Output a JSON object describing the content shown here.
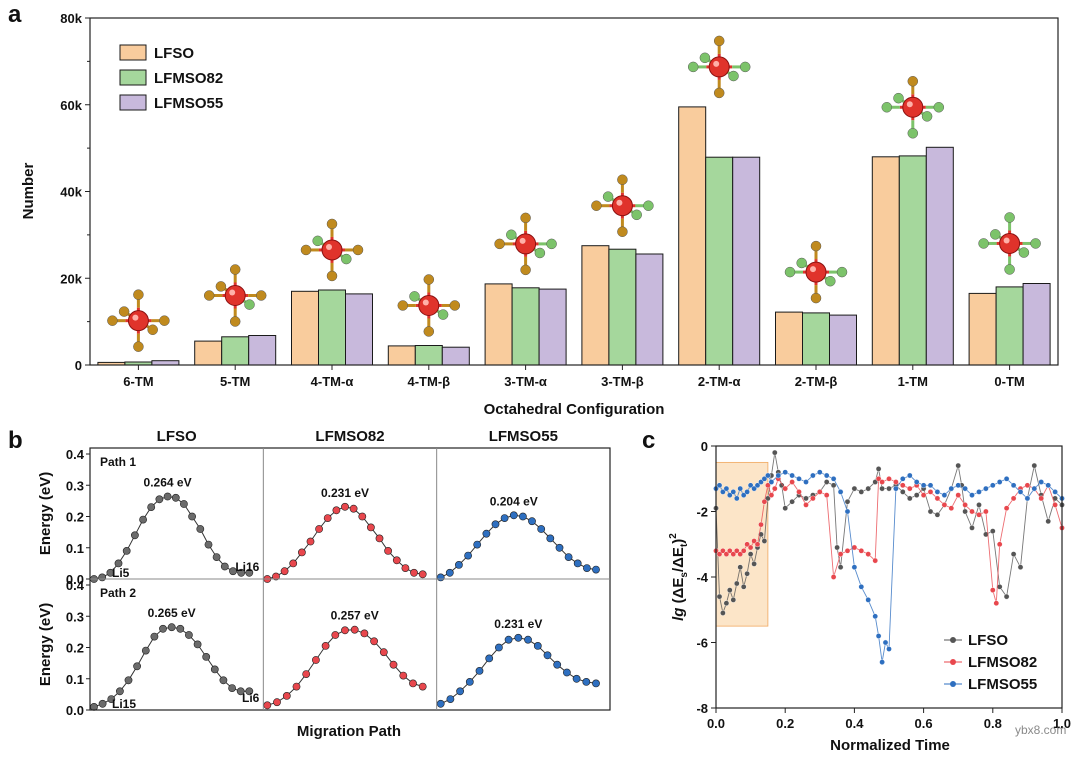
{
  "chart_data": [
    {
      "panel": "a",
      "type": "bar",
      "xlabel": "Octahedral Configuration",
      "ylabel": "Number",
      "ylim": [
        0,
        80000
      ],
      "yticks": [
        "0",
        "20k",
        "40k",
        "60k",
        "80k"
      ],
      "categories": [
        "6-TM",
        "5-TM",
        "4-TM-α",
        "4-TM-β",
        "3-TM-α",
        "3-TM-β",
        "2-TM-α",
        "2-TM-β",
        "1-TM",
        "0-TM"
      ],
      "series": [
        {
          "name": "LFSO",
          "color": "#f9cc9d",
          "values": [
            600,
            5500,
            17000,
            4400,
            18700,
            27500,
            59500,
            12200,
            48000,
            16500
          ]
        },
        {
          "name": "LFMSO82",
          "color": "#a5d79c",
          "values": [
            700,
            6500,
            17300,
            4500,
            17800,
            26700,
            47900,
            12000,
            48200,
            18000
          ]
        },
        {
          "name": "LFMSO55",
          "color": "#c8b9dc",
          "values": [
            1000,
            6800,
            16400,
            4100,
            17500,
            25600,
            47900,
            11500,
            50200,
            18800
          ]
        }
      ]
    },
    {
      "panel": "b",
      "type": "line",
      "xlabel": "Migration Path",
      "ylabel": "Energy (eV)",
      "ylim": [
        0,
        0.4
      ],
      "yticks": [
        "0.0",
        "0.1",
        "0.2",
        "0.3",
        "0.4"
      ],
      "columns": [
        "LFSO",
        "LFMSO82",
        "LFMSO55"
      ],
      "rows": [
        {
          "label": "Path 1",
          "start_label": "Li5",
          "end_label": "Li16",
          "series": [
            {
              "name": "LFSO",
              "color": "#6b6b6b",
              "barrier": "0.264 eV",
              "values": [
                0.0,
                0.005,
                0.02,
                0.05,
                0.09,
                0.14,
                0.19,
                0.23,
                0.255,
                0.264,
                0.26,
                0.24,
                0.2,
                0.16,
                0.11,
                0.07,
                0.04,
                0.025,
                0.02,
                0.02
              ]
            },
            {
              "name": "LFMSO82",
              "color": "#e8474d",
              "barrier": "0.231 eV",
              "values": [
                0.0,
                0.008,
                0.025,
                0.05,
                0.085,
                0.12,
                0.16,
                0.195,
                0.22,
                0.231,
                0.225,
                0.2,
                0.165,
                0.13,
                0.09,
                0.06,
                0.035,
                0.02,
                0.015
              ]
            },
            {
              "name": "LFMSO55",
              "color": "#2e6fc0",
              "barrier": "0.204 eV",
              "values": [
                0.005,
                0.02,
                0.045,
                0.075,
                0.11,
                0.145,
                0.175,
                0.195,
                0.204,
                0.2,
                0.185,
                0.16,
                0.13,
                0.1,
                0.07,
                0.05,
                0.035,
                0.03
              ]
            }
          ]
        },
        {
          "label": "Path 2",
          "start_label": "Li15",
          "end_label": "Li6",
          "series": [
            {
              "name": "LFSO",
              "color": "#6b6b6b",
              "barrier": "0.265 eV",
              "values": [
                0.01,
                0.02,
                0.035,
                0.06,
                0.095,
                0.14,
                0.19,
                0.235,
                0.26,
                0.265,
                0.26,
                0.24,
                0.21,
                0.17,
                0.13,
                0.095,
                0.07,
                0.06,
                0.06
              ]
            },
            {
              "name": "LFMSO82",
              "color": "#e8474d",
              "barrier": "0.257 eV",
              "values": [
                0.015,
                0.025,
                0.045,
                0.075,
                0.115,
                0.16,
                0.205,
                0.24,
                0.255,
                0.257,
                0.245,
                0.22,
                0.185,
                0.145,
                0.11,
                0.085,
                0.075
              ]
            },
            {
              "name": "LFMSO55",
              "color": "#2e6fc0",
              "barrier": "0.231 eV",
              "values": [
                0.02,
                0.035,
                0.06,
                0.09,
                0.125,
                0.165,
                0.2,
                0.225,
                0.231,
                0.225,
                0.205,
                0.175,
                0.145,
                0.12,
                0.1,
                0.09,
                0.085
              ]
            }
          ]
        }
      ]
    },
    {
      "panel": "c",
      "type": "line",
      "xlabel": "Normalized Time",
      "ylabel_prefix": "lg",
      "ylabel_body": " (ΔE",
      "ylabel_sub1": "s",
      "ylabel_mid": "/ΔE",
      "ylabel_sub2": "t",
      "ylabel_end": ")",
      "ylabel_sup": "2",
      "xlim": [
        0,
        1
      ],
      "ylim": [
        -8,
        0
      ],
      "xticks": [
        "0.0",
        "0.2",
        "0.4",
        "0.6",
        "0.8",
        "1.0"
      ],
      "yticks": [
        "0",
        "-2",
        "-4",
        "-6",
        "-8"
      ],
      "highlight_x": [
        0.0,
        0.15
      ],
      "highlight_y": [
        -5.5,
        -0.5
      ],
      "series": [
        {
          "name": "LFSO",
          "color": "#555555",
          "x": [
            0.0,
            0.01,
            0.02,
            0.03,
            0.04,
            0.05,
            0.06,
            0.07,
            0.08,
            0.09,
            0.1,
            0.11,
            0.12,
            0.13,
            0.14,
            0.15,
            0.16,
            0.17,
            0.18,
            0.19,
            0.2,
            0.22,
            0.24,
            0.26,
            0.28,
            0.3,
            0.32,
            0.34,
            0.35,
            0.36,
            0.38,
            0.4,
            0.42,
            0.44,
            0.46,
            0.47,
            0.48,
            0.5,
            0.52,
            0.54,
            0.56,
            0.58,
            0.6,
            0.62,
            0.64,
            0.66,
            0.68,
            0.7,
            0.71,
            0.72,
            0.74,
            0.76,
            0.78,
            0.8,
            0.82,
            0.84,
            0.86,
            0.88,
            0.9,
            0.92,
            0.94,
            0.96,
            0.98,
            1.0
          ],
          "y": [
            -1.9,
            -4.6,
            -5.1,
            -4.8,
            -4.4,
            -4.7,
            -4.2,
            -3.7,
            -4.3,
            -3.9,
            -3.3,
            -3.6,
            -3.1,
            -2.7,
            -2.9,
            -1.6,
            -0.9,
            -0.2,
            -0.8,
            -1.2,
            -1.9,
            -1.7,
            -1.5,
            -1.6,
            -1.5,
            -1.4,
            -1.1,
            -1.2,
            -3.1,
            -3.7,
            -1.7,
            -1.3,
            -1.4,
            -1.3,
            -1.1,
            -0.7,
            -1.3,
            -1.3,
            -1.2,
            -1.4,
            -1.6,
            -1.5,
            -1.3,
            -2.0,
            -2.1,
            -1.8,
            -1.3,
            -0.6,
            -1.2,
            -2.0,
            -2.5,
            -1.8,
            -2.7,
            -2.6,
            -4.3,
            -4.6,
            -3.3,
            -3.7,
            -1.6,
            -0.6,
            -1.5,
            -2.3,
            -1.6,
            -1.8
          ]
        },
        {
          "name": "LFMSO82",
          "color": "#e8474d",
          "x": [
            0.0,
            0.01,
            0.02,
            0.03,
            0.04,
            0.05,
            0.06,
            0.07,
            0.08,
            0.09,
            0.1,
            0.11,
            0.12,
            0.13,
            0.14,
            0.15,
            0.16,
            0.17,
            0.18,
            0.2,
            0.22,
            0.24,
            0.26,
            0.28,
            0.3,
            0.32,
            0.34,
            0.36,
            0.38,
            0.4,
            0.42,
            0.44,
            0.46,
            0.47,
            0.48,
            0.5,
            0.52,
            0.54,
            0.56,
            0.58,
            0.6,
            0.62,
            0.64,
            0.66,
            0.68,
            0.7,
            0.72,
            0.74,
            0.76,
            0.78,
            0.8,
            0.81,
            0.82,
            0.84,
            0.86,
            0.88,
            0.9,
            0.92,
            0.94,
            0.96,
            0.98,
            1.0
          ],
          "y": [
            -3.2,
            -3.3,
            -3.2,
            -3.3,
            -3.2,
            -3.3,
            -3.2,
            -3.3,
            -3.2,
            -3.0,
            -3.1,
            -2.9,
            -3.0,
            -2.4,
            -1.7,
            -1.2,
            -1.5,
            -1.3,
            -1.0,
            -1.3,
            -1.1,
            -1.4,
            -1.8,
            -1.6,
            -1.4,
            -1.5,
            -4.0,
            -3.3,
            -3.2,
            -3.1,
            -3.2,
            -3.3,
            -3.5,
            -1.0,
            -1.1,
            -1.0,
            -1.1,
            -1.2,
            -1.3,
            -1.2,
            -1.5,
            -1.4,
            -1.6,
            -1.8,
            -1.9,
            -1.5,
            -1.8,
            -2.0,
            -2.1,
            -2.0,
            -4.4,
            -4.8,
            -3.0,
            -1.9,
            -1.6,
            -1.3,
            -1.2,
            -1.3,
            -1.6,
            -1.2,
            -1.8,
            -2.5
          ]
        },
        {
          "name": "LFMSO55",
          "color": "#2e6fc0",
          "x": [
            0.0,
            0.01,
            0.02,
            0.03,
            0.04,
            0.05,
            0.06,
            0.07,
            0.08,
            0.09,
            0.1,
            0.11,
            0.12,
            0.13,
            0.14,
            0.15,
            0.16,
            0.18,
            0.2,
            0.22,
            0.24,
            0.26,
            0.28,
            0.3,
            0.32,
            0.34,
            0.36,
            0.38,
            0.4,
            0.42,
            0.44,
            0.46,
            0.47,
            0.48,
            0.49,
            0.5,
            0.52,
            0.54,
            0.56,
            0.58,
            0.6,
            0.62,
            0.64,
            0.66,
            0.68,
            0.7,
            0.72,
            0.74,
            0.76,
            0.78,
            0.8,
            0.82,
            0.84,
            0.86,
            0.88,
            0.9,
            0.92,
            0.94,
            0.96,
            0.98,
            1.0
          ],
          "y": [
            -1.3,
            -1.2,
            -1.4,
            -1.3,
            -1.5,
            -1.4,
            -1.6,
            -1.3,
            -1.5,
            -1.4,
            -1.2,
            -1.3,
            -1.2,
            -1.1,
            -1.0,
            -0.9,
            -1.1,
            -0.9,
            -0.8,
            -0.9,
            -1.0,
            -1.1,
            -0.9,
            -0.8,
            -0.9,
            -1.0,
            -1.4,
            -2.0,
            -3.7,
            -4.3,
            -4.7,
            -5.2,
            -5.8,
            -6.6,
            -6.0,
            -6.2,
            -1.3,
            -1.0,
            -0.9,
            -1.1,
            -1.2,
            -1.2,
            -1.4,
            -1.5,
            -1.3,
            -1.2,
            -1.3,
            -1.5,
            -1.4,
            -1.3,
            -1.2,
            -1.1,
            -1.0,
            -1.2,
            -1.4,
            -1.6,
            -1.3,
            -1.1,
            -1.2,
            -1.4,
            -1.6
          ]
        }
      ]
    }
  ],
  "watermark": "ybx8.com"
}
